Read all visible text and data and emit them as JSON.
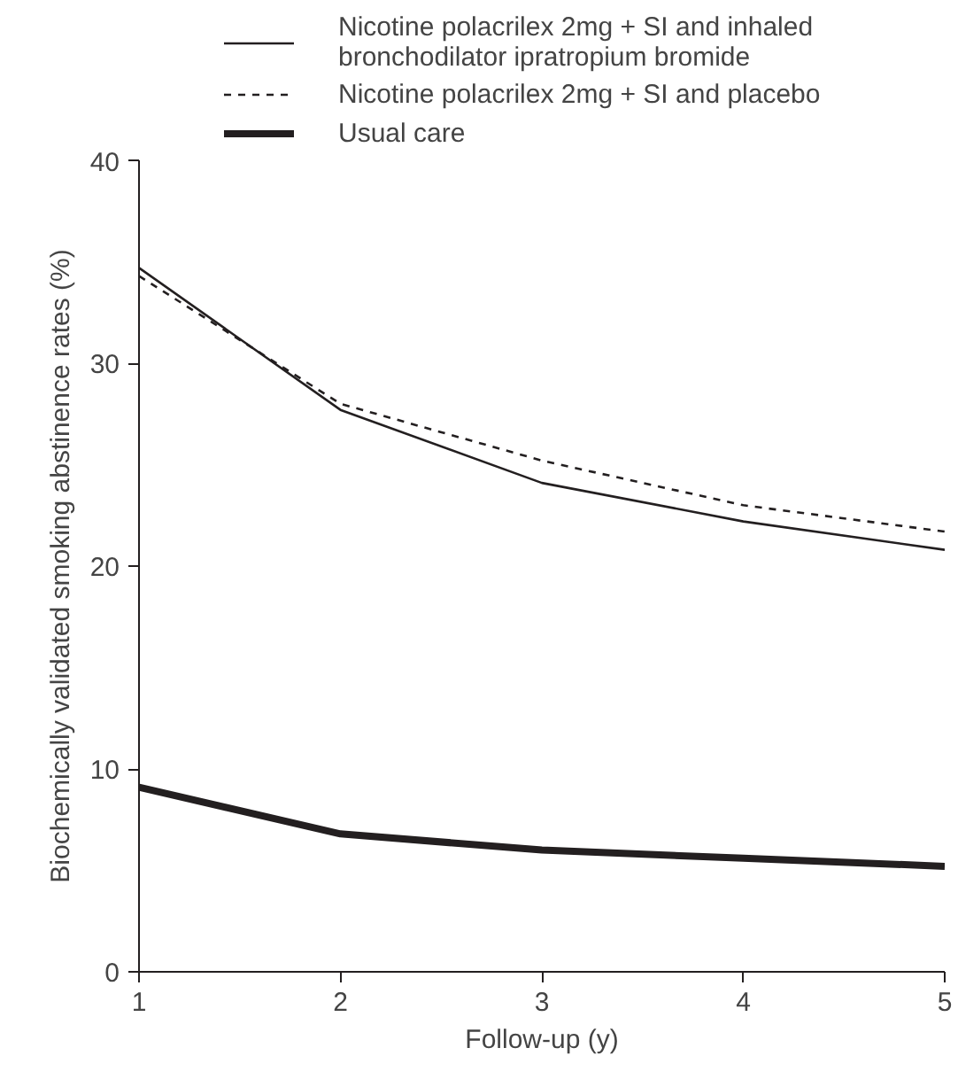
{
  "chart_data": {
    "type": "line",
    "xlabel": "Follow-up (y)",
    "ylabel": "Biochemically validated smoking abstinence rates (%)",
    "x": [
      1,
      2,
      3,
      4,
      5
    ],
    "xlim": [
      1,
      5
    ],
    "xticks": [
      1,
      2,
      3,
      4,
      5
    ],
    "ylim": [
      0,
      40
    ],
    "yticks": [
      0,
      10,
      20,
      30,
      40
    ],
    "grid": false,
    "legend": "top",
    "marker": "none",
    "series": [
      {
        "name": "Nicotine polacrilex 2mg + SI and inhaled bronchodilator ipratropium bromide",
        "color": "#231f20",
        "line_style": "solid",
        "values": [
          34.7,
          27.7,
          24.1,
          22.2,
          20.8
        ]
      },
      {
        "name": "Nicotine polacrilex 2mg + SI and placebo",
        "color": "#231f20",
        "line_style": "dashed",
        "values": [
          34.3,
          28.0,
          25.2,
          23.0,
          21.7
        ]
      },
      {
        "name": "Usual care",
        "color": "#231f20",
        "line_style": "solid",
        "values": [
          9.1,
          6.8,
          6.0,
          5.6,
          5.2
        ]
      }
    ]
  }
}
